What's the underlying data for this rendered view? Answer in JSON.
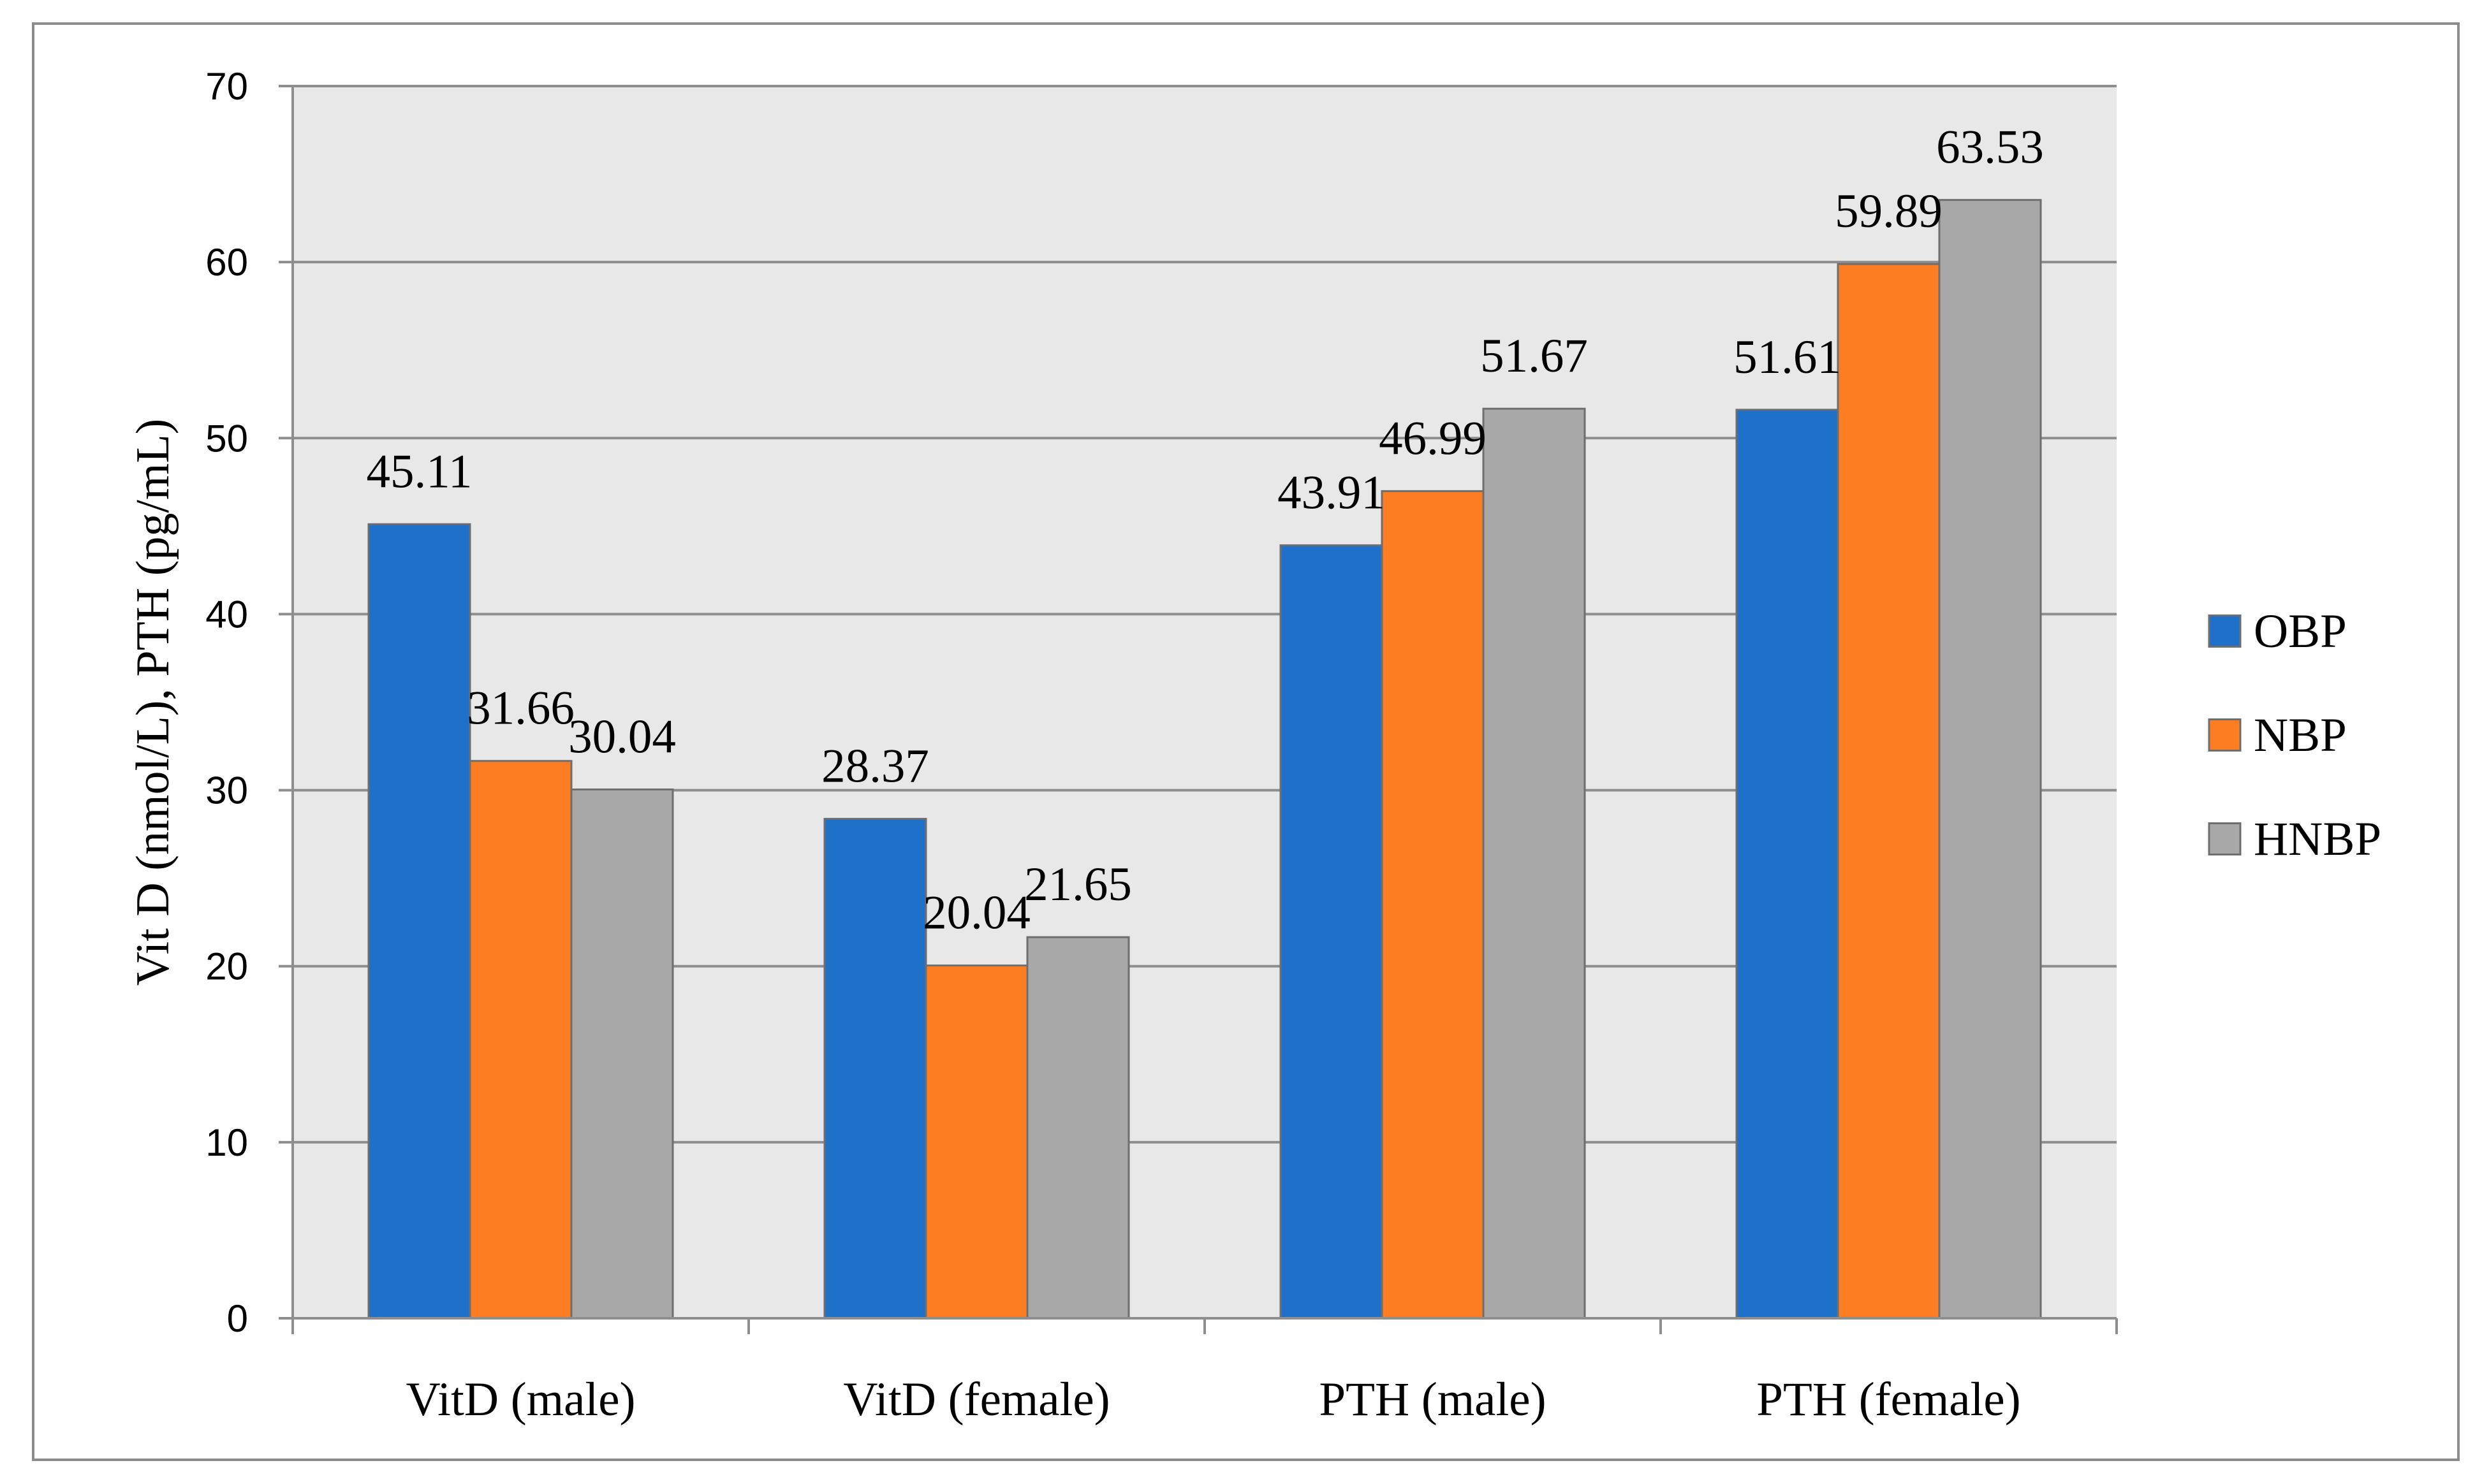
{
  "chart_data": {
    "type": "bar",
    "title": "",
    "xlabel": "",
    "ylabel": "Vit D (nmol/L), PTH (pg/mL)",
    "ylim": [
      0,
      70
    ],
    "yticks": [
      0,
      10,
      20,
      30,
      40,
      50,
      60,
      70
    ],
    "grid": true,
    "legend_position": "right",
    "categories": [
      "VitD (male)",
      "VitD (female)",
      "PTH (male)",
      "PTH (female)"
    ],
    "series": [
      {
        "name": "OBP",
        "color": "#1f70c8",
        "values": [
          45.11,
          28.37,
          43.91,
          51.61
        ],
        "labels": [
          "45.11",
          "28.37",
          "43.91",
          "51.61"
        ]
      },
      {
        "name": "NBP",
        "color": "#fc7d22",
        "values": [
          31.66,
          20.04,
          46.99,
          59.89
        ],
        "labels": [
          "31.66",
          "20.04",
          "46.99",
          "59.89"
        ]
      },
      {
        "name": "HNBP",
        "color": "#a8a8a8",
        "values": [
          30.04,
          21.65,
          51.67,
          63.53
        ],
        "labels": [
          "30.04",
          "21.65",
          "51.67",
          "63.53"
        ]
      }
    ]
  },
  "colors": {
    "plot_background": "#e8e8e8",
    "gridline": "#8e8e8e",
    "axis": "#8e8e8e",
    "bar_outline": "#6e6e6e"
  }
}
